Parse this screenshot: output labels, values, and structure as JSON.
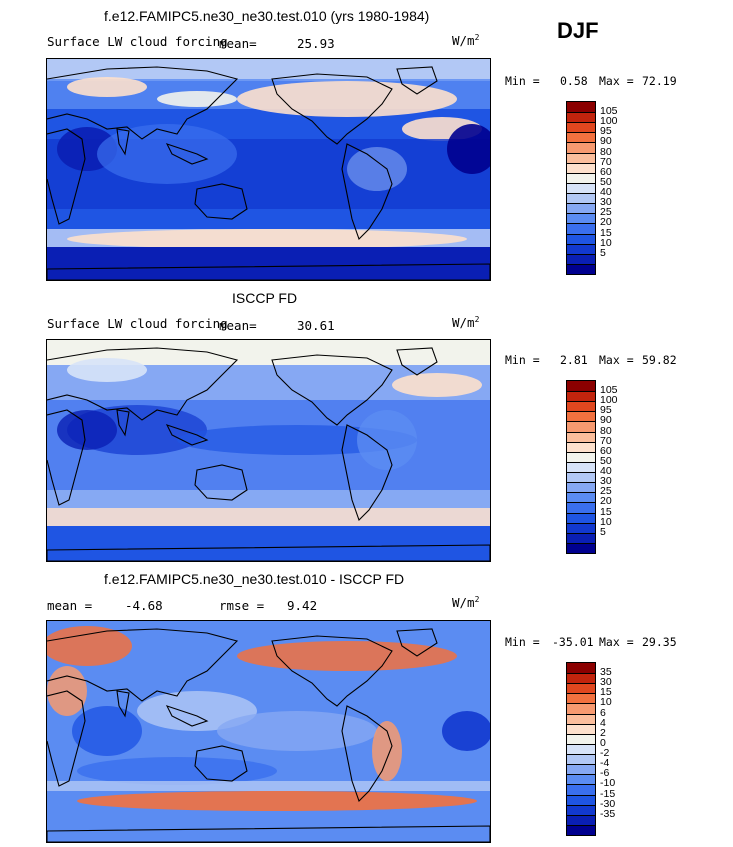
{
  "season": "DJF",
  "colors": {
    "abs_scale": [
      "#00008f",
      "#0a1fb4",
      "#1239cf",
      "#1f55e3",
      "#3a6fee",
      "#5b8cf2",
      "#86a8f3",
      "#b2c8f5",
      "#d7e3f8",
      "#f2f3ec",
      "#fde0cc",
      "#fbbe9c",
      "#f79a70",
      "#f2713f",
      "#e0471f",
      "#c2240d",
      "#8b0000"
    ],
    "diff_scale": [
      "#00008f",
      "#0a1fb4",
      "#1239cf",
      "#1f55e3",
      "#3a6fee",
      "#5b8cf2",
      "#86a8f3",
      "#b2c8f5",
      "#d7e3f8",
      "#f2f3ec",
      "#fde0cc",
      "#fbbe9c",
      "#f79a70",
      "#f2713f",
      "#e0471f",
      "#c2240d",
      "#8b0000"
    ]
  },
  "panels": [
    {
      "title": "f.e12.FAMIPC5.ne30_ne30.test.010 (yrs 1980-1984)",
      "left_label": "Surface LW cloud forcing",
      "mean_label": "mean=",
      "mean_value": "25.93",
      "units": "W/m",
      "units_exp": "2",
      "min_label": "Min =",
      "min_value": "0.58",
      "max_label": "Max =",
      "max_value": "72.19",
      "colorbar_labels": [
        "105",
        "100",
        "95",
        "90",
        "80",
        "70",
        "60",
        "50",
        "40",
        "30",
        "25",
        "20",
        "15",
        "10",
        "5"
      ],
      "map_variant": "model"
    },
    {
      "title": "ISCCP FD",
      "left_label": "Surface LW cloud forcing",
      "mean_label": "mean=",
      "mean_value": "30.61",
      "units": "W/m",
      "units_exp": "2",
      "min_label": "Min =",
      "min_value": "2.81",
      "max_label": "Max =",
      "max_value": "59.82",
      "colorbar_labels": [
        "105",
        "100",
        "95",
        "90",
        "80",
        "70",
        "60",
        "50",
        "40",
        "30",
        "25",
        "20",
        "15",
        "10",
        "5"
      ],
      "map_variant": "obs"
    },
    {
      "title": "f.e12.FAMIPC5.ne30_ne30.test.010 - ISCCP FD",
      "left_label": "",
      "mean_label": "mean =",
      "mean_value": "-4.68",
      "rmse_label": "rmse =",
      "rmse_value": "9.42",
      "units": "W/m",
      "units_exp": "2",
      "min_label": "Min =",
      "min_value": "-35.01",
      "max_label": "Max =",
      "max_value": "29.35",
      "colorbar_labels": [
        "35",
        "30",
        "15",
        "10",
        "6",
        "4",
        "2",
        "0",
        "-2",
        "-4",
        "-6",
        "-10",
        "-15",
        "-30",
        "-35"
      ],
      "map_variant": "diff"
    }
  ]
}
